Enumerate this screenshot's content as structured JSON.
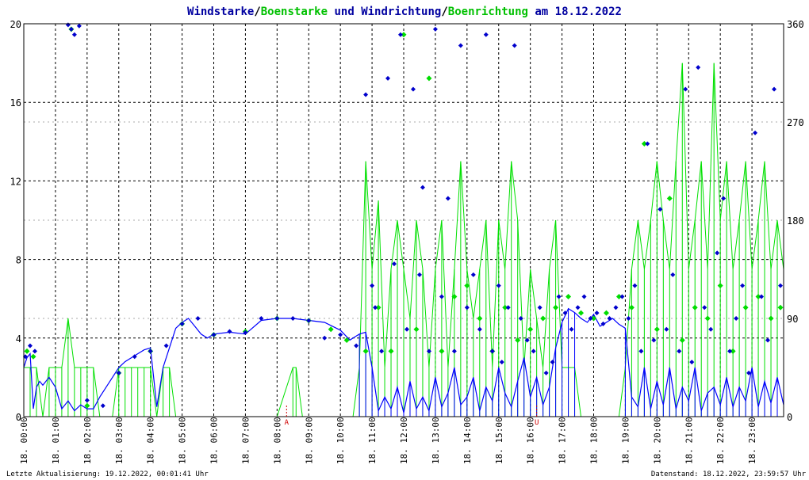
{
  "header": {
    "part1": "Windstarke",
    "sep1": "/",
    "part2": "Boenstarke",
    "part3": " und ",
    "part4": "Windrichtung",
    "sep2": "/",
    "part5": "Boenrichtung",
    "part6": " am 18.12.2022"
  },
  "footer": {
    "left": "Letzte Aktualisierung: 19.12.2022, 00:01:41 Uhr",
    "right": "Datenstand: 18.12.2022, 23:59:57 Uhr"
  },
  "markers": [
    "A",
    "U"
  ],
  "colors": {
    "wind_speed": "#0000ff",
    "gust": "#00e000",
    "wind_dir": "#0000cc",
    "gust_dir": "#00dd00",
    "title_dark": "#0000a0",
    "title_green": "#00c000"
  },
  "chart_data": {
    "type": "line",
    "title": "Windstarke/Boenstarke und Windrichtung/Boenrichtung am 18.12.2022",
    "x_ticks": [
      "18. 00:00",
      "18. 01:00",
      "18. 02:00",
      "18. 03:00",
      "18. 04:00",
      "18. 05:00",
      "18. 06:00",
      "18. 07:00",
      "18. 08:00",
      "18. 09:00",
      "18. 10:00",
      "18. 11:00",
      "18. 12:00",
      "18. 13:00",
      "18. 14:00",
      "18. 15:00",
      "18. 16:00",
      "18. 17:00",
      "18. 18:00",
      "18. 19:00",
      "18. 20:00",
      "18. 21:00",
      "18. 22:00",
      "18. 23:00"
    ],
    "xlim": [
      0,
      24
    ],
    "ylim_left": [
      0,
      20
    ],
    "y_ticks_left": [
      0,
      4,
      8,
      12,
      16,
      20
    ],
    "ylim_right": [
      0,
      360
    ],
    "y_ticks_right": [
      0,
      90,
      180,
      270,
      360
    ],
    "grid": true,
    "series": [
      {
        "name": "Windstarke",
        "kind": "speed",
        "x": [
          0.0,
          0.1,
          0.2,
          0.3,
          0.4,
          0.5,
          0.6,
          0.8,
          1.0,
          1.2,
          1.4,
          1.6,
          1.8,
          2.0,
          2.2,
          2.4,
          2.6,
          2.8,
          3.0,
          3.2,
          3.4,
          3.6,
          3.8,
          4.0,
          4.2,
          4.4,
          4.6,
          4.8,
          5.0,
          5.2,
          5.4,
          5.6,
          5.8,
          6.0,
          6.5,
          7.0,
          7.5,
          8.0,
          8.5,
          9.0,
          9.5,
          10.0,
          10.3,
          10.6,
          10.8,
          11.0,
          11.2,
          11.4,
          11.6,
          11.8,
          12.0,
          12.2,
          12.4,
          12.6,
          12.8,
          13.0,
          13.2,
          13.4,
          13.6,
          13.8,
          14.0,
          14.2,
          14.4,
          14.6,
          14.8,
          15.0,
          15.2,
          15.4,
          15.6,
          15.8,
          16.0,
          16.2,
          16.4,
          16.6,
          16.8,
          17.0,
          17.2,
          17.4,
          17.6,
          17.8,
          18.0,
          18.2,
          18.4,
          18.6,
          18.8,
          19.0,
          19.2,
          19.4,
          19.6,
          19.8,
          20.0,
          20.2,
          20.4,
          20.6,
          20.8,
          21.0,
          21.2,
          21.4,
          21.6,
          21.8,
          22.0,
          22.2,
          22.4,
          22.6,
          22.8,
          23.0,
          23.2,
          23.4,
          23.6,
          23.8,
          24.0
        ],
        "values": [
          2.5,
          3.0,
          3.2,
          0.4,
          1.5,
          1.8,
          1.6,
          2.0,
          1.5,
          0.4,
          0.8,
          0.3,
          0.6,
          0.4,
          0.4,
          1.0,
          1.5,
          2.0,
          2.5,
          2.8,
          3.0,
          3.2,
          3.4,
          3.5,
          0.5,
          2.5,
          3.5,
          4.5,
          4.8,
          5.0,
          4.6,
          4.2,
          4.0,
          4.2,
          4.3,
          4.2,
          4.9,
          5.0,
          5.0,
          4.9,
          4.8,
          4.4,
          3.9,
          4.2,
          4.3,
          2.5,
          0.3,
          1.0,
          0.4,
          1.5,
          0.2,
          1.8,
          0.4,
          1.0,
          0.3,
          2.0,
          0.5,
          1.2,
          2.5,
          0.6,
          1.0,
          2.0,
          0.3,
          1.5,
          0.8,
          2.5,
          1.2,
          0.5,
          1.8,
          3.0,
          1.0,
          2.0,
          0.6,
          1.5,
          3.5,
          4.8,
          5.5,
          5.3,
          5.0,
          4.8,
          5.2,
          4.6,
          4.8,
          5.0,
          4.7,
          4.5,
          1.0,
          0.5,
          2.5,
          0.4,
          1.8,
          0.6,
          2.5,
          0.4,
          1.5,
          0.8,
          2.5,
          0.3,
          1.2,
          1.5,
          0.6,
          2.0,
          0.5,
          1.5,
          0.8,
          2.5,
          0.5,
          1.8,
          0.7,
          2.0,
          0.6
        ]
      },
      {
        "name": "Boenstarke",
        "kind": "gust",
        "x": [
          0.0,
          0.2,
          0.4,
          0.6,
          0.8,
          1.0,
          1.2,
          1.4,
          1.6,
          1.8,
          2.0,
          2.2,
          2.4,
          2.6,
          2.8,
          3.0,
          3.2,
          3.4,
          3.6,
          3.8,
          4.0,
          4.2,
          4.4,
          4.6,
          4.8,
          5.0,
          5.5,
          6.0,
          7.0,
          8.0,
          8.5,
          8.6,
          8.8,
          9.0,
          9.5,
          10.0,
          10.4,
          10.6,
          10.8,
          11.0,
          11.2,
          11.4,
          11.6,
          11.8,
          12.0,
          12.2,
          12.4,
          12.6,
          12.8,
          13.0,
          13.2,
          13.4,
          13.6,
          13.8,
          14.0,
          14.2,
          14.4,
          14.6,
          14.8,
          15.0,
          15.2,
          15.4,
          15.6,
          15.8,
          16.0,
          16.2,
          16.4,
          16.6,
          16.8,
          17.0,
          17.2,
          17.4,
          17.6,
          17.8,
          18.0,
          18.2,
          18.4,
          18.6,
          18.8,
          19.0,
          19.2,
          19.4,
          19.6,
          19.8,
          20.0,
          20.2,
          20.4,
          20.6,
          20.8,
          21.0,
          21.2,
          21.4,
          21.6,
          21.8,
          22.0,
          22.2,
          22.4,
          22.6,
          22.8,
          23.0,
          23.2,
          23.4,
          23.6,
          23.8,
          24.0
        ],
        "values": [
          2.5,
          2.5,
          2.5,
          0.0,
          2.5,
          2.5,
          2.5,
          5.0,
          2.5,
          2.5,
          2.5,
          2.5,
          0.0,
          0.0,
          0.0,
          2.5,
          2.5,
          2.5,
          2.5,
          2.5,
          2.5,
          0.0,
          2.5,
          2.5,
          0.0,
          0.0,
          0.0,
          0.0,
          0.0,
          0.0,
          2.5,
          2.5,
          0.0,
          0.0,
          0.0,
          0.0,
          0.0,
          2.5,
          13.0,
          7.5,
          11.0,
          2.5,
          7.5,
          10.0,
          7.5,
          5.0,
          10.0,
          7.5,
          2.5,
          7.5,
          10.0,
          2.5,
          7.5,
          13.0,
          7.5,
          5.0,
          7.5,
          10.0,
          2.5,
          10.0,
          7.5,
          13.0,
          10.0,
          2.5,
          7.5,
          5.0,
          2.5,
          7.5,
          10.0,
          2.5,
          2.5,
          2.5,
          0.0,
          0.0,
          0.0,
          0.0,
          0.0,
          0.0,
          0.0,
          2.5,
          7.5,
          10.0,
          7.5,
          10.0,
          13.0,
          10.0,
          7.5,
          13.0,
          18.0,
          7.5,
          10.0,
          13.0,
          7.5,
          18.0,
          10.0,
          13.0,
          7.5,
          10.0,
          13.0,
          7.5,
          10.0,
          13.0,
          7.5,
          10.0,
          7.5
        ]
      },
      {
        "name": "Windrichtung",
        "kind": "dir",
        "x": [
          0.05,
          0.2,
          0.35,
          1.4,
          1.5,
          1.6,
          1.75,
          2.0,
          2.5,
          3.0,
          3.5,
          4.0,
          4.5,
          5.0,
          5.5,
          6.0,
          6.5,
          7.0,
          7.5,
          8.0,
          8.5,
          9.0,
          9.5,
          10.0,
          10.5,
          10.8,
          11.0,
          11.1,
          11.3,
          11.5,
          11.7,
          11.9,
          12.1,
          12.3,
          12.5,
          12.6,
          12.8,
          13.0,
          13.2,
          13.4,
          13.6,
          13.8,
          14.0,
          14.2,
          14.4,
          14.6,
          14.8,
          15.0,
          15.1,
          15.3,
          15.5,
          15.7,
          15.9,
          16.1,
          16.3,
          16.5,
          16.7,
          16.9,
          17.1,
          17.3,
          17.5,
          17.7,
          17.9,
          18.1,
          18.3,
          18.5,
          18.7,
          18.9,
          19.1,
          19.3,
          19.5,
          19.7,
          19.9,
          20.1,
          20.3,
          20.5,
          20.7,
          20.9,
          21.1,
          21.3,
          21.5,
          21.7,
          21.9,
          22.1,
          22.3,
          22.5,
          22.7,
          22.9,
          23.1,
          23.3,
          23.5,
          23.7,
          23.9
        ],
        "values": [
          55,
          65,
          60,
          359,
          355,
          350,
          358,
          15,
          10,
          40,
          55,
          60,
          65,
          85,
          90,
          75,
          78,
          77,
          90,
          90,
          90,
          88,
          72,
          75,
          65,
          295,
          120,
          100,
          60,
          310,
          140,
          350,
          80,
          300,
          130,
          210,
          60,
          355,
          110,
          200,
          60,
          340,
          100,
          130,
          80,
          350,
          60,
          120,
          50,
          100,
          340,
          90,
          70,
          60,
          100,
          40,
          50,
          110,
          95,
          80,
          100,
          110,
          90,
          95,
          85,
          90,
          100,
          110,
          90,
          120,
          60,
          250,
          70,
          190,
          80,
          130,
          60,
          300,
          50,
          320,
          100,
          80,
          150,
          200,
          60,
          90,
          120,
          40,
          260,
          110,
          70,
          300,
          120
        ]
      },
      {
        "name": "Boenrichtung",
        "kind": "gustdir",
        "x": [
          0.1,
          0.3,
          1.5,
          2.0,
          3.0,
          4.0,
          5.0,
          6.0,
          7.0,
          8.0,
          9.0,
          9.7,
          10.2,
          10.8,
          11.2,
          11.6,
          12.0,
          12.4,
          12.8,
          13.2,
          13.6,
          14.0,
          14.4,
          14.8,
          15.2,
          15.6,
          16.0,
          16.4,
          16.8,
          17.2,
          17.6,
          18.0,
          18.4,
          18.8,
          19.2,
          19.6,
          20.0,
          20.4,
          20.8,
          21.2,
          21.6,
          22.0,
          22.4,
          22.8,
          23.2,
          23.6,
          23.9
        ],
        "values": [
          60,
          55,
          355,
          10,
          40,
          60,
          85,
          75,
          78,
          90,
          88,
          80,
          70,
          60,
          100,
          60,
          350,
          80,
          310,
          60,
          110,
          120,
          90,
          60,
          100,
          70,
          80,
          90,
          100,
          110,
          95,
          90,
          95,
          110,
          100,
          250,
          80,
          200,
          70,
          100,
          90,
          120,
          60,
          100,
          110,
          90,
          100
        ]
      }
    ],
    "markers": [
      {
        "x": 8.3,
        "label": "A"
      },
      {
        "x": 16.2,
        "label": "U"
      }
    ]
  }
}
